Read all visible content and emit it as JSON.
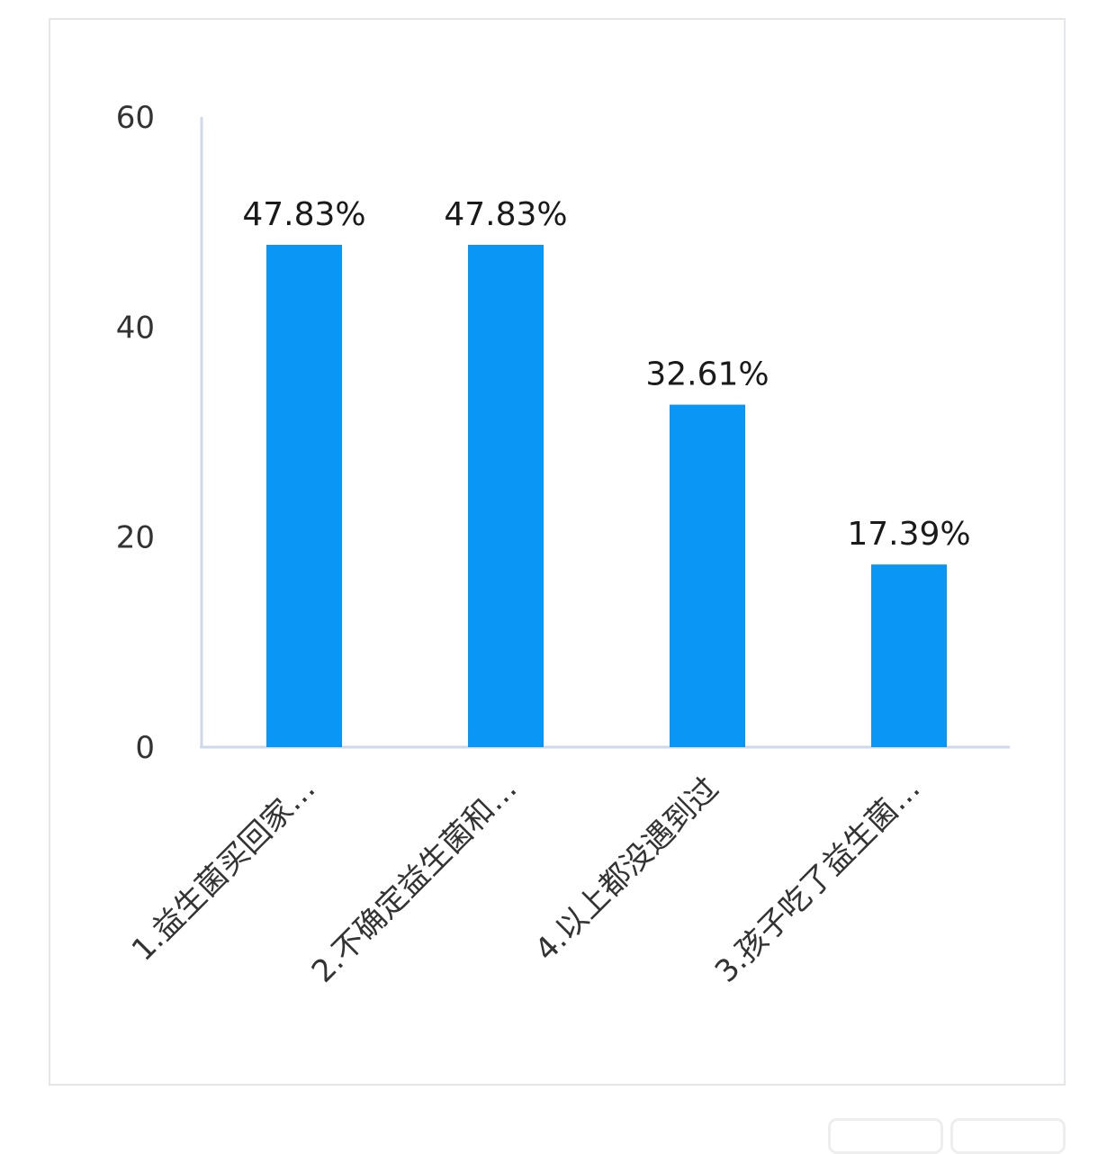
{
  "chart_data": {
    "type": "bar",
    "categories": [
      "1.益生菌买回家…",
      "2.不确定益生菌和…",
      "4.以上都没遇到过",
      "3.孩子吃了益生菌…"
    ],
    "values": [
      47.83,
      47.83,
      32.61,
      17.39
    ],
    "data_labels": [
      "47.83%",
      "47.83%",
      "32.61%",
      "17.39%"
    ],
    "ylim": [
      0,
      60
    ],
    "yticks": [
      0,
      20,
      40,
      60
    ],
    "bar_color": "#0a96f5",
    "axis_color": "#cfd9ea",
    "grid": false,
    "legend": "none"
  }
}
